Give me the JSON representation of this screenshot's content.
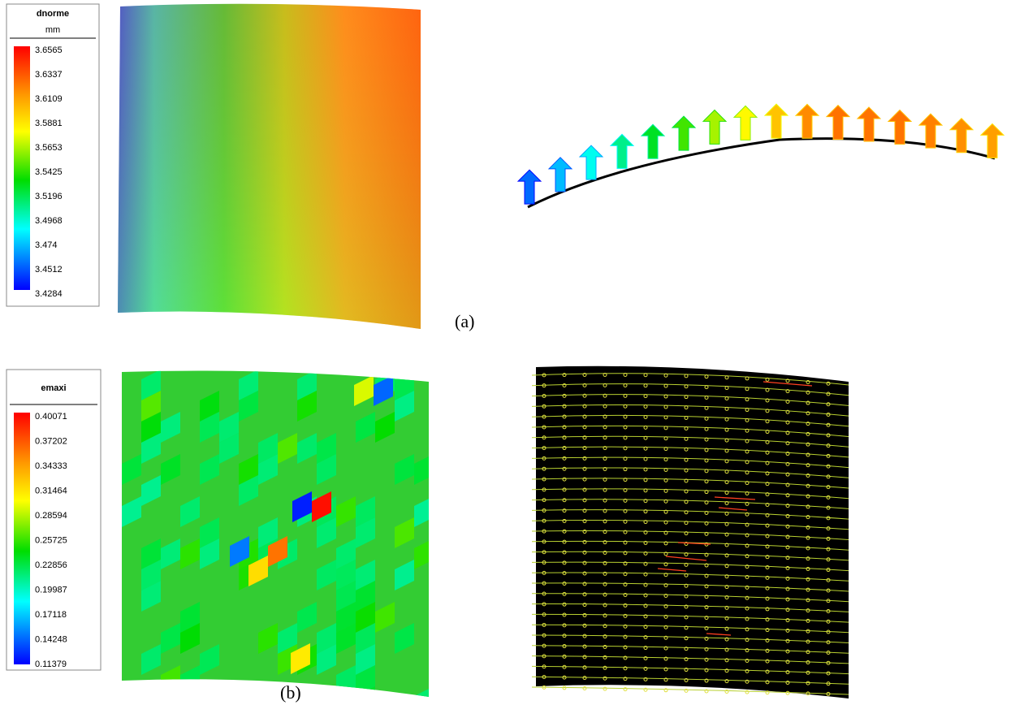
{
  "panel_a": {
    "legend": {
      "title": "dnorme",
      "unit": "mm",
      "labels": [
        "3.6565",
        "3.6337",
        "3.6109",
        "3.5881",
        "3.5653",
        "3.5425",
        "3.5196",
        "3.4968",
        "3.474",
        "3.4512",
        "3.4284"
      ]
    },
    "caption": "(a)"
  },
  "panel_b": {
    "legend": {
      "title": "emaxi",
      "labels": [
        "0.40071",
        "0.37202",
        "0.34333",
        "0.31464",
        "0.28594",
        "0.25725",
        "0.22856",
        "0.19987",
        "0.17118",
        "0.14248",
        "0.11379"
      ]
    },
    "caption": "(b)"
  }
}
